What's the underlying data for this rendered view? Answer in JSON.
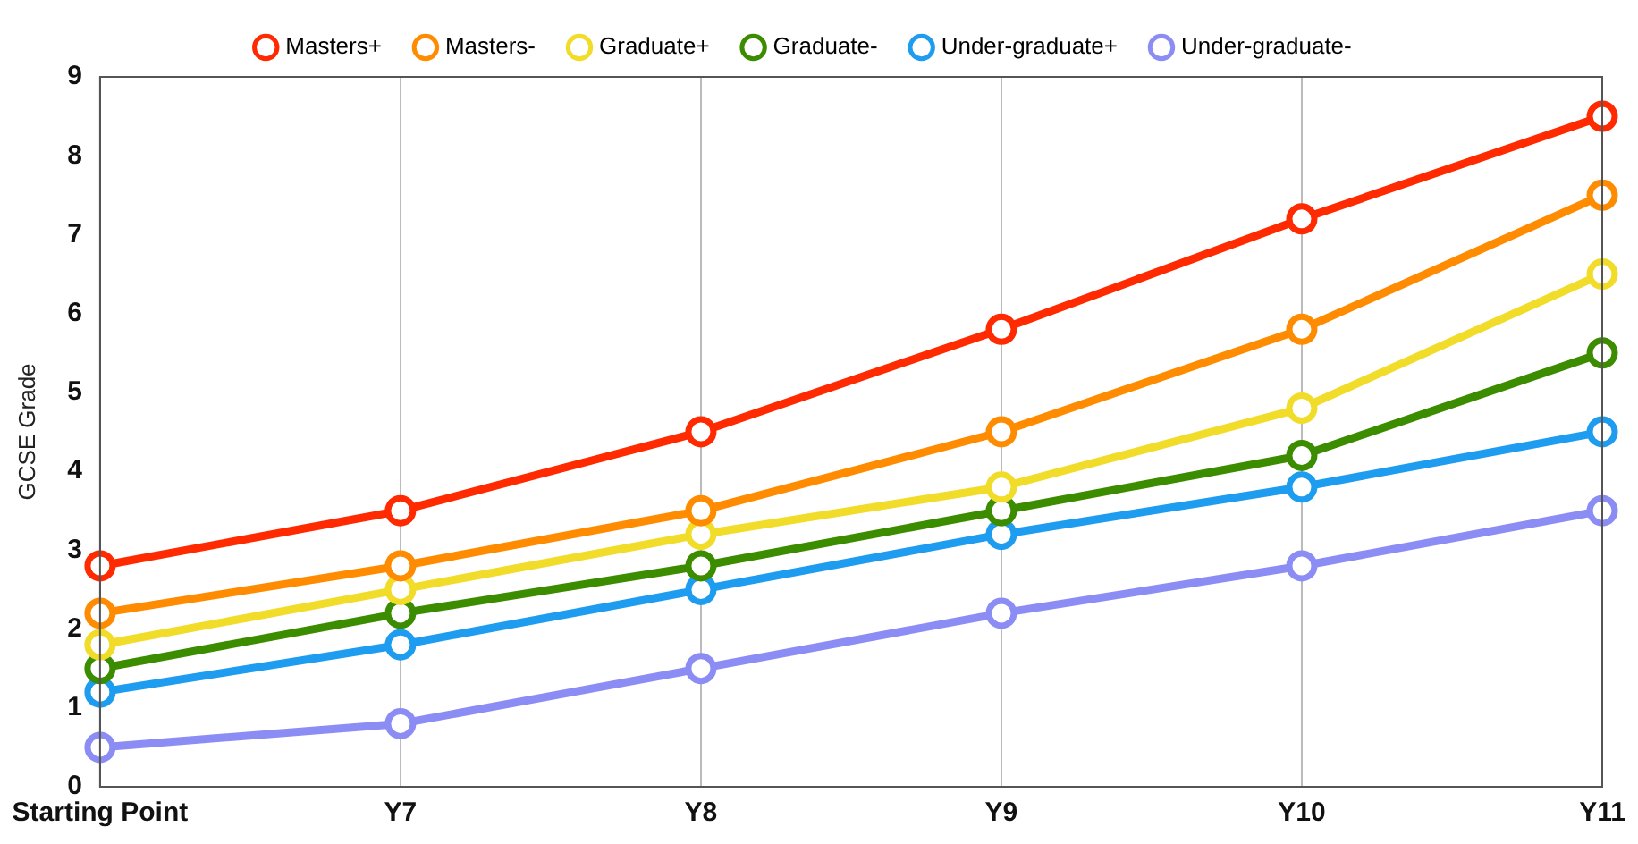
{
  "chart_data": {
    "type": "line",
    "ylabel": "GCSE Grade",
    "categories": [
      "Starting Point",
      "Y7",
      "Y8",
      "Y9",
      "Y10",
      "Y11"
    ],
    "series": [
      {
        "name": "Masters+",
        "color": "#ff2a00",
        "values": [
          2.8,
          3.5,
          4.5,
          5.8,
          7.2,
          8.5
        ]
      },
      {
        "name": "Masters-",
        "color": "#ff8c00",
        "values": [
          2.2,
          2.8,
          3.5,
          4.5,
          5.8,
          7.5
        ]
      },
      {
        "name": "Graduate+",
        "color": "#f2dc2a",
        "values": [
          1.8,
          2.5,
          3.2,
          3.8,
          4.8,
          6.5
        ]
      },
      {
        "name": "Graduate-",
        "color": "#3c8c00",
        "values": [
          1.5,
          2.2,
          2.8,
          3.5,
          4.2,
          5.5
        ]
      },
      {
        "name": "Under-graduate+",
        "color": "#1e9cf0",
        "values": [
          1.2,
          1.8,
          2.5,
          3.2,
          3.8,
          4.5
        ]
      },
      {
        "name": "Under-graduate-",
        "color": "#8c8cf5",
        "values": [
          0.5,
          0.8,
          1.5,
          2.2,
          2.8,
          3.5
        ]
      }
    ],
    "ylim": [
      0,
      9
    ],
    "yticks": [
      0,
      1,
      2,
      3,
      4,
      5,
      6,
      7,
      8,
      9
    ],
    "grid": "x",
    "legend": "top",
    "marker": "circle",
    "line_style": "solid"
  }
}
